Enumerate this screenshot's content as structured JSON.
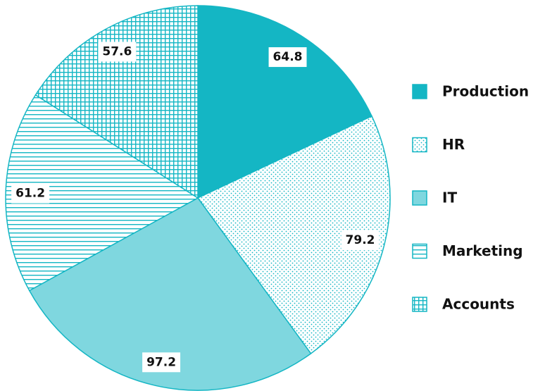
{
  "chart_data": {
    "type": "pie",
    "categories": [
      "Production",
      "HR",
      "IT",
      "Marketing",
      "Accounts"
    ],
    "values": [
      64.8,
      79.2,
      97.2,
      61.2,
      57.6
    ],
    "colors": [
      "#14b6c4",
      "#14b6c4",
      "#7fd7df",
      "#14b6c4",
      "#14b6c4"
    ],
    "patterns": [
      "solid",
      "dots",
      "solid",
      "hlines",
      "grid"
    ],
    "legend": "right"
  }
}
